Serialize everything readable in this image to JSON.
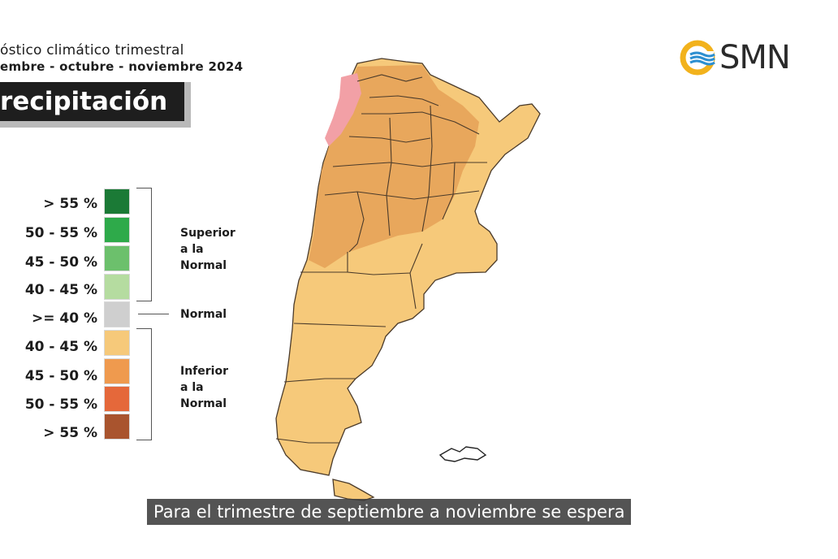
{
  "header": {
    "title": "óstico climático trimestral",
    "subtitle": "embre - octubre - noviembre  2024"
  },
  "variable_banner": "recipitación",
  "logo": {
    "text": "SMN",
    "icon": "smn-logo-icon"
  },
  "legend": {
    "items": [
      {
        "label": "> 55 %",
        "color": "#1b7a36"
      },
      {
        "label": "50 - 55 %",
        "color": "#2eaa4a"
      },
      {
        "label": "45 - 50 %",
        "color": "#6cc06c"
      },
      {
        "label": "40 - 45 %",
        "color": "#b5dca0"
      },
      {
        "label": ">= 40 %",
        "color": "#cfcfcf"
      },
      {
        "label": "40 - 45 %",
        "color": "#f6c97a"
      },
      {
        "label": "45 - 50 %",
        "color": "#ef9a4e"
      },
      {
        "label": "50 - 55 %",
        "color": "#e5683a"
      },
      {
        "label": "> 55 %",
        "color": "#a9542e"
      }
    ],
    "groups": {
      "superior": [
        "Superior",
        "a la",
        "Normal"
      ],
      "normal": "Normal",
      "inferior": [
        "Inferior",
        "a la",
        "Normal"
      ]
    }
  },
  "map": {
    "colors": {
      "base": "#f6c97a",
      "darker": "#e8a75c",
      "pink": "#f2a0a6",
      "border": "#4a3a2a"
    }
  },
  "caption": "Para el trimestre de septiembre a noviembre se espera"
}
